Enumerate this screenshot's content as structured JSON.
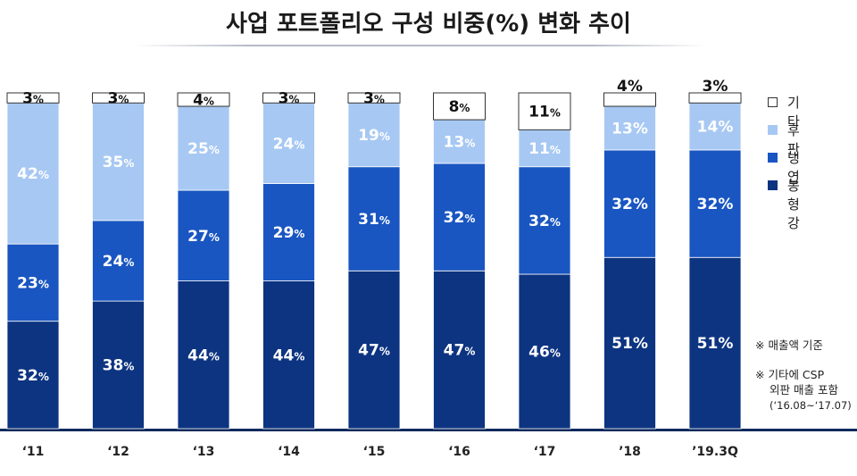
{
  "title": "사업 포트폴리오 구성 비중(%) 변화 추이",
  "legend": [
    {
      "label": "기타",
      "color": "#ffffff"
    },
    {
      "label": "후판",
      "color": "#a6c8f2"
    },
    {
      "label": "냉연",
      "color": "#1a56c2"
    },
    {
      "label": "봉형강",
      "color": "#0d3480"
    }
  ],
  "notes": {
    "note1": "※ 매출액 기준",
    "note2_line1": "※ 기타에 CSP",
    "note2_line2": "외판 매출 포함",
    "note2_line3": "(‘16.08~‘17.07)"
  },
  "chart_data": {
    "type": "bar",
    "stacked": true,
    "categories": [
      "‘11",
      "‘12",
      "‘13",
      "‘14",
      "‘15",
      "‘16",
      "‘17",
      "’18",
      "’19.3Q"
    ],
    "series": [
      {
        "name": "봉형강",
        "color": "#0d3480",
        "values": [
          32,
          38,
          44,
          44,
          47,
          47,
          46,
          51,
          51
        ]
      },
      {
        "name": "냉연",
        "color": "#1a56c2",
        "values": [
          23,
          24,
          27,
          29,
          31,
          32,
          32,
          32,
          32
        ]
      },
      {
        "name": "후판",
        "color": "#a6c8f2",
        "values": [
          42,
          35,
          25,
          24,
          19,
          13,
          11,
          13,
          14
        ]
      },
      {
        "name": "기타",
        "color": "#ffffff",
        "values": [
          3,
          3,
          4,
          3,
          3,
          8,
          11,
          4,
          3
        ]
      }
    ],
    "ylim": [
      0,
      100
    ],
    "label_suffix": "%",
    "grid": false
  }
}
